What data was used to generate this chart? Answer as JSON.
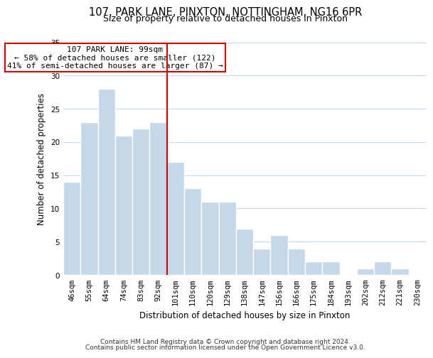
{
  "title": "107, PARK LANE, PINXTON, NOTTINGHAM, NG16 6PR",
  "subtitle": "Size of property relative to detached houses in Pinxton",
  "xlabel": "Distribution of detached houses by size in Pinxton",
  "ylabel": "Number of detached properties",
  "bar_color": "#c5d8ea",
  "bar_edge_color": "#ffffff",
  "background_color": "#ffffff",
  "grid_color": "#c8d8e8",
  "vline_color": "#cc0000",
  "vline_x_index": 6,
  "annotation_line1": "107 PARK LANE: 99sqm",
  "annotation_line2": "← 58% of detached houses are smaller (122)",
  "annotation_line3": "41% of semi-detached houses are larger (87) →",
  "annotation_box_color": "#ffffff",
  "annotation_box_edge_color": "#cc0000",
  "bins": [
    "46sqm",
    "55sqm",
    "64sqm",
    "74sqm",
    "83sqm",
    "92sqm",
    "101sqm",
    "110sqm",
    "120sqm",
    "129sqm",
    "138sqm",
    "147sqm",
    "156sqm",
    "166sqm",
    "175sqm",
    "184sqm",
    "193sqm",
    "202sqm",
    "212sqm",
    "221sqm",
    "230sqm"
  ],
  "values": [
    14,
    23,
    28,
    21,
    22,
    23,
    17,
    13,
    11,
    11,
    7,
    4,
    6,
    4,
    2,
    2,
    0,
    1,
    2,
    1,
    0
  ],
  "ylim": [
    0,
    35
  ],
  "yticks": [
    0,
    5,
    10,
    15,
    20,
    25,
    30,
    35
  ],
  "footer_line1": "Contains HM Land Registry data © Crown copyright and database right 2024.",
  "footer_line2": "Contains public sector information licensed under the Open Government Licence v3.0.",
  "title_fontsize": 10.5,
  "subtitle_fontsize": 9,
  "axis_label_fontsize": 8.5,
  "tick_fontsize": 7.5,
  "annotation_fontsize": 8,
  "footer_fontsize": 6.5
}
